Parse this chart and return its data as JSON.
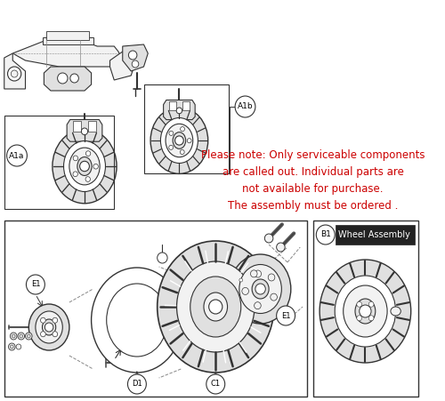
{
  "bg_color": "#ffffff",
  "note_text": "Please note: Only serviceable components\nare called out. Individual parts are\nnot available for purchase.\nThe assembly must be ordered .",
  "note_color": "#cc0000",
  "note_fontsize": 8.5,
  "label_A1a": "A1a",
  "label_A1b": "A1b",
  "label_B1": "B1",
  "label_C1": "C1",
  "label_D1": "D1",
  "label_E1": "E1",
  "wheel_assembly_text": "Wheel Assembly",
  "line_color": "#333333",
  "light_line": "#888888",
  "fill_light": "#f2f2f2",
  "fill_mid": "#e0e0e0",
  "fill_dark": "#c8c8c8"
}
